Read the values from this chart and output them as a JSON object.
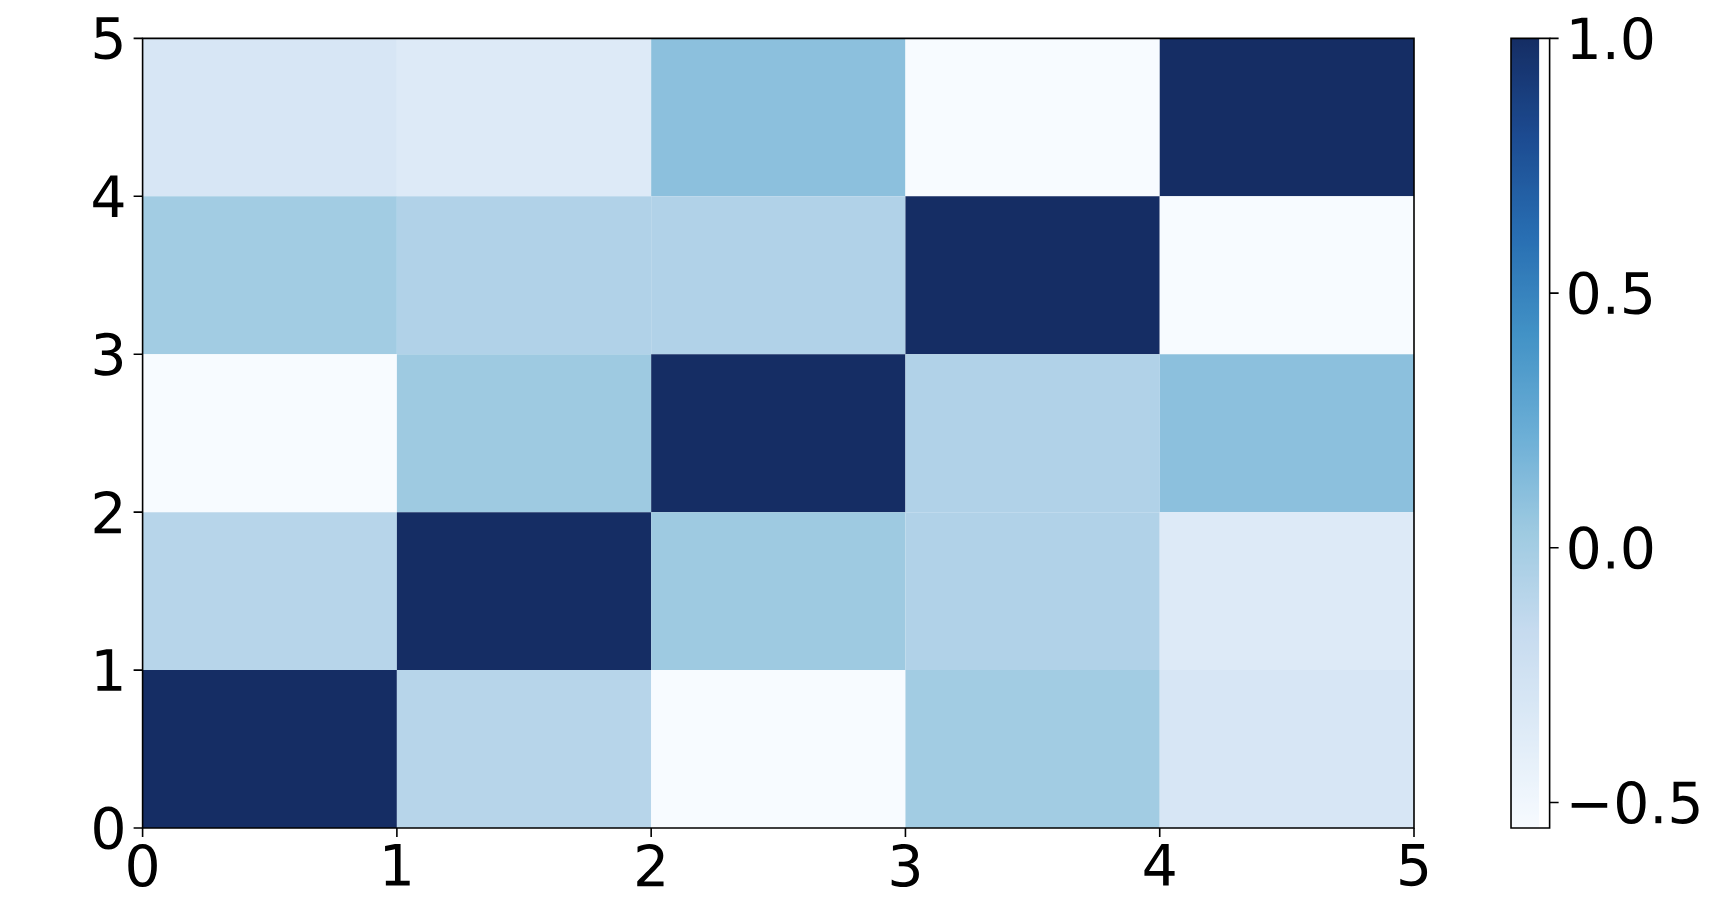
{
  "chart_data": {
    "type": "heatmap",
    "cells": [
      [
        -0.3,
        -0.35,
        0.1,
        -0.55,
        1.0
      ],
      [
        0.01,
        -0.06,
        -0.06,
        1.0,
        -0.55
      ],
      [
        -0.55,
        0.03,
        1.0,
        -0.06,
        0.1
      ],
      [
        -0.09,
        1.0,
        0.03,
        -0.06,
        -0.35
      ],
      [
        1.0,
        -0.09,
        -0.55,
        0.01,
        -0.3
      ]
    ],
    "xlim": [
      0,
      5
    ],
    "ylim": [
      0,
      5
    ],
    "xticks": [
      0,
      1,
      2,
      3,
      4,
      5
    ],
    "yticks": [
      0,
      1,
      2,
      3,
      4,
      5
    ],
    "clim": [
      -0.55,
      1.0
    ],
    "cticks": [
      {
        "value": -0.5,
        "label": "−0.5"
      },
      {
        "value": 0,
        "label": "0.0"
      },
      {
        "value": 0.5,
        "label": "0.5"
      },
      {
        "value": 1,
        "label": "1.0"
      }
    ]
  }
}
